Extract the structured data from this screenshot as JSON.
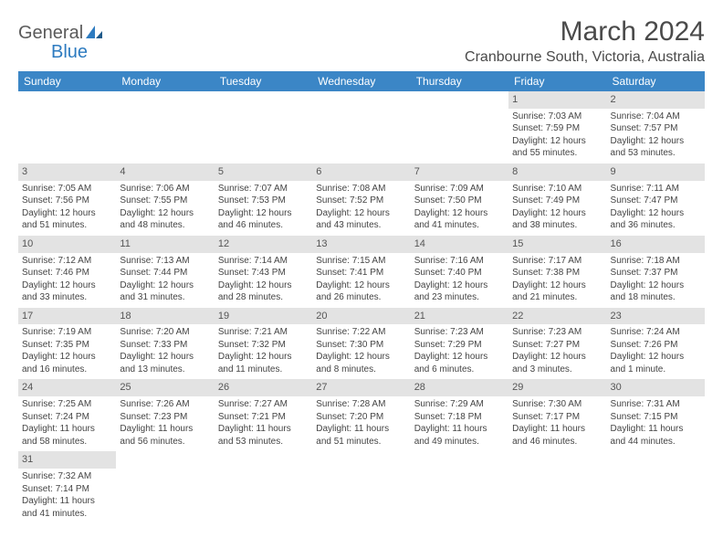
{
  "logo": {
    "text1": "General",
    "text2": "Blue"
  },
  "title": "March 2024",
  "location": "Cranbourne South, Victoria, Australia",
  "colors": {
    "header_bg": "#3b86c6",
    "header_text": "#ffffff",
    "daynum_bg": "#e3e3e3",
    "page_bg": "#ffffff",
    "text": "#444444"
  },
  "days_of_week": [
    "Sunday",
    "Monday",
    "Tuesday",
    "Wednesday",
    "Thursday",
    "Friday",
    "Saturday"
  ],
  "grid": {
    "columns": 7,
    "rows": 6,
    "first_day_column": 5,
    "days": [
      {
        "n": 1,
        "sunrise": "7:03 AM",
        "sunset": "7:59 PM",
        "dh": 12,
        "dm": 55
      },
      {
        "n": 2,
        "sunrise": "7:04 AM",
        "sunset": "7:57 PM",
        "dh": 12,
        "dm": 53
      },
      {
        "n": 3,
        "sunrise": "7:05 AM",
        "sunset": "7:56 PM",
        "dh": 12,
        "dm": 51
      },
      {
        "n": 4,
        "sunrise": "7:06 AM",
        "sunset": "7:55 PM",
        "dh": 12,
        "dm": 48
      },
      {
        "n": 5,
        "sunrise": "7:07 AM",
        "sunset": "7:53 PM",
        "dh": 12,
        "dm": 46
      },
      {
        "n": 6,
        "sunrise": "7:08 AM",
        "sunset": "7:52 PM",
        "dh": 12,
        "dm": 43
      },
      {
        "n": 7,
        "sunrise": "7:09 AM",
        "sunset": "7:50 PM",
        "dh": 12,
        "dm": 41
      },
      {
        "n": 8,
        "sunrise": "7:10 AM",
        "sunset": "7:49 PM",
        "dh": 12,
        "dm": 38
      },
      {
        "n": 9,
        "sunrise": "7:11 AM",
        "sunset": "7:47 PM",
        "dh": 12,
        "dm": 36
      },
      {
        "n": 10,
        "sunrise": "7:12 AM",
        "sunset": "7:46 PM",
        "dh": 12,
        "dm": 33
      },
      {
        "n": 11,
        "sunrise": "7:13 AM",
        "sunset": "7:44 PM",
        "dh": 12,
        "dm": 31
      },
      {
        "n": 12,
        "sunrise": "7:14 AM",
        "sunset": "7:43 PM",
        "dh": 12,
        "dm": 28
      },
      {
        "n": 13,
        "sunrise": "7:15 AM",
        "sunset": "7:41 PM",
        "dh": 12,
        "dm": 26
      },
      {
        "n": 14,
        "sunrise": "7:16 AM",
        "sunset": "7:40 PM",
        "dh": 12,
        "dm": 23
      },
      {
        "n": 15,
        "sunrise": "7:17 AM",
        "sunset": "7:38 PM",
        "dh": 12,
        "dm": 21
      },
      {
        "n": 16,
        "sunrise": "7:18 AM",
        "sunset": "7:37 PM",
        "dh": 12,
        "dm": 18
      },
      {
        "n": 17,
        "sunrise": "7:19 AM",
        "sunset": "7:35 PM",
        "dh": 12,
        "dm": 16
      },
      {
        "n": 18,
        "sunrise": "7:20 AM",
        "sunset": "7:33 PM",
        "dh": 12,
        "dm": 13
      },
      {
        "n": 19,
        "sunrise": "7:21 AM",
        "sunset": "7:32 PM",
        "dh": 12,
        "dm": 11
      },
      {
        "n": 20,
        "sunrise": "7:22 AM",
        "sunset": "7:30 PM",
        "dh": 12,
        "dm": 8
      },
      {
        "n": 21,
        "sunrise": "7:23 AM",
        "sunset": "7:29 PM",
        "dh": 12,
        "dm": 6
      },
      {
        "n": 22,
        "sunrise": "7:23 AM",
        "sunset": "7:27 PM",
        "dh": 12,
        "dm": 3
      },
      {
        "n": 23,
        "sunrise": "7:24 AM",
        "sunset": "7:26 PM",
        "dh": 12,
        "dm": 1
      },
      {
        "n": 24,
        "sunrise": "7:25 AM",
        "sunset": "7:24 PM",
        "dh": 11,
        "dm": 58
      },
      {
        "n": 25,
        "sunrise": "7:26 AM",
        "sunset": "7:23 PM",
        "dh": 11,
        "dm": 56
      },
      {
        "n": 26,
        "sunrise": "7:27 AM",
        "sunset": "7:21 PM",
        "dh": 11,
        "dm": 53
      },
      {
        "n": 27,
        "sunrise": "7:28 AM",
        "sunset": "7:20 PM",
        "dh": 11,
        "dm": 51
      },
      {
        "n": 28,
        "sunrise": "7:29 AM",
        "sunset": "7:18 PM",
        "dh": 11,
        "dm": 49
      },
      {
        "n": 29,
        "sunrise": "7:30 AM",
        "sunset": "7:17 PM",
        "dh": 11,
        "dm": 46
      },
      {
        "n": 30,
        "sunrise": "7:31 AM",
        "sunset": "7:15 PM",
        "dh": 11,
        "dm": 44
      },
      {
        "n": 31,
        "sunrise": "7:32 AM",
        "sunset": "7:14 PM",
        "dh": 11,
        "dm": 41
      }
    ]
  },
  "labels": {
    "sunrise": "Sunrise:",
    "sunset": "Sunset:",
    "daylight": "Daylight:",
    "hours": "hours",
    "and": "and",
    "minutes": "minutes.",
    "minute": "minute."
  }
}
